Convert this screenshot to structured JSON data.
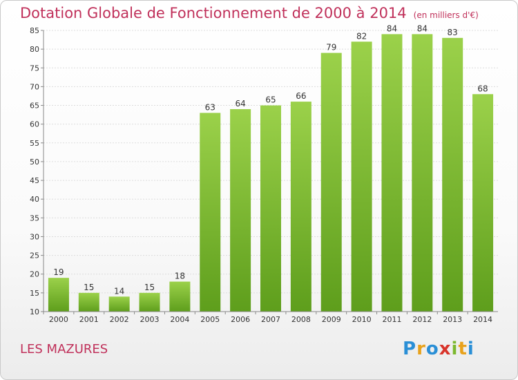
{
  "header": {
    "title": "Dotation Globale de Fonctionnement de 2000 à 2014",
    "unit": "(en milliers d'€)"
  },
  "footer": {
    "commune": "LES MAZURES",
    "logo": {
      "letters": [
        "P",
        "r",
        "o",
        "x",
        "i",
        "t",
        "i"
      ],
      "colors": [
        "#2a8fd6",
        "#e8a21c",
        "#2a8fd6",
        "#d8342b",
        "#7cb82f",
        "#e8a21c",
        "#2a8fd6"
      ]
    }
  },
  "chart_data": {
    "type": "bar",
    "categories": [
      "2000",
      "2001",
      "2002",
      "2003",
      "2004",
      "2005",
      "2006",
      "2007",
      "2008",
      "2009",
      "2010",
      "2011",
      "2012",
      "2013",
      "2014"
    ],
    "values": [
      19,
      15,
      14,
      15,
      18,
      63,
      64,
      65,
      66,
      79,
      82,
      84,
      84,
      83,
      68
    ],
    "ylim": [
      10,
      85
    ],
    "yticks": [
      10,
      15,
      20,
      25,
      30,
      35,
      40,
      45,
      50,
      55,
      60,
      65,
      70,
      75,
      80,
      85
    ],
    "grid": true,
    "bar_color": "#7cbf2f"
  }
}
